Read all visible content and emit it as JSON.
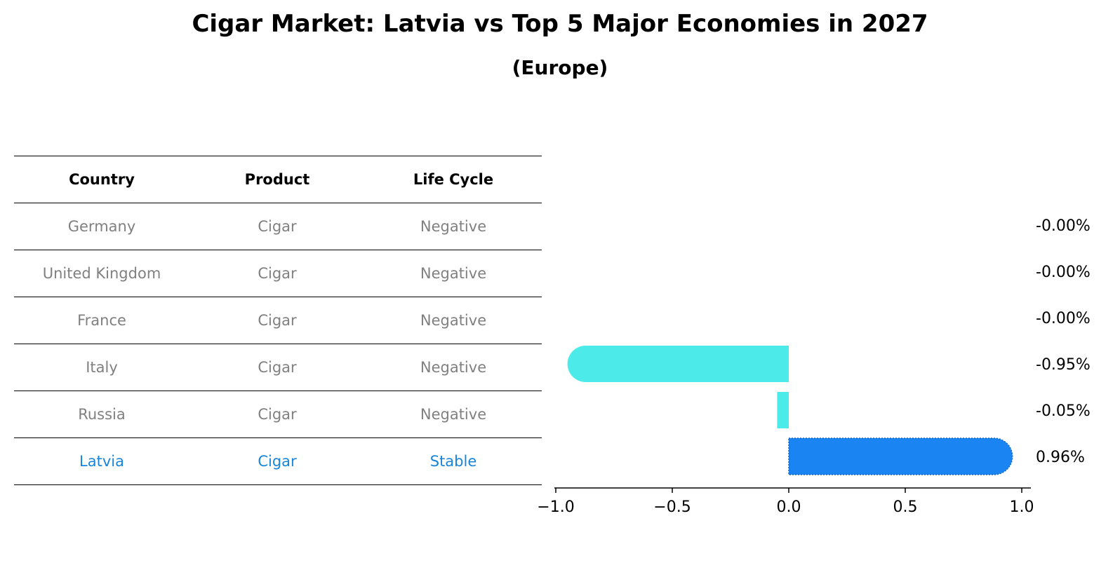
{
  "title": "Cigar Market: Latvia vs Top 5 Major Economies in 2027",
  "subtitle": "(Europe)",
  "table": {
    "headers": [
      "Country",
      "Product",
      "Life Cycle"
    ],
    "rows": [
      [
        "Germany",
        "Cigar",
        "Negative"
      ],
      [
        "United Kingdom",
        "Cigar",
        "Negative"
      ],
      [
        "France",
        "Cigar",
        "Negative"
      ],
      [
        "Italy",
        "Cigar",
        "Negative"
      ],
      [
        "Russia",
        "Cigar",
        "Negative"
      ],
      [
        "Latvia",
        "Cigar",
        "Stable"
      ]
    ]
  },
  "colors": {
    "dim_text": "#808080",
    "highlight_text": "#1a85d8",
    "others_bar": "#4deaea",
    "latvia_bar": "#1a85f2"
  },
  "chart_data": {
    "type": "bar",
    "orientation": "horizontal",
    "categories": [
      "Germany",
      "United Kingdom",
      "France",
      "Italy",
      "Russia",
      "Latvia"
    ],
    "values": [
      -0.0,
      -0.0,
      -0.0,
      -0.95,
      -0.05,
      0.96
    ],
    "value_labels": [
      "-0.00%",
      "-0.00%",
      "-0.00%",
      "-0.95%",
      "-0.05%",
      "0.96%"
    ],
    "highlight": "Latvia",
    "xlim": [
      -1.05,
      1.05
    ],
    "xticks": [
      -1.0,
      -0.5,
      0.0,
      0.5,
      1.0
    ],
    "xtick_labels": [
      "−1.0",
      "−0.5",
      "0.0",
      "0.5",
      "1.0"
    ],
    "grid": false
  }
}
